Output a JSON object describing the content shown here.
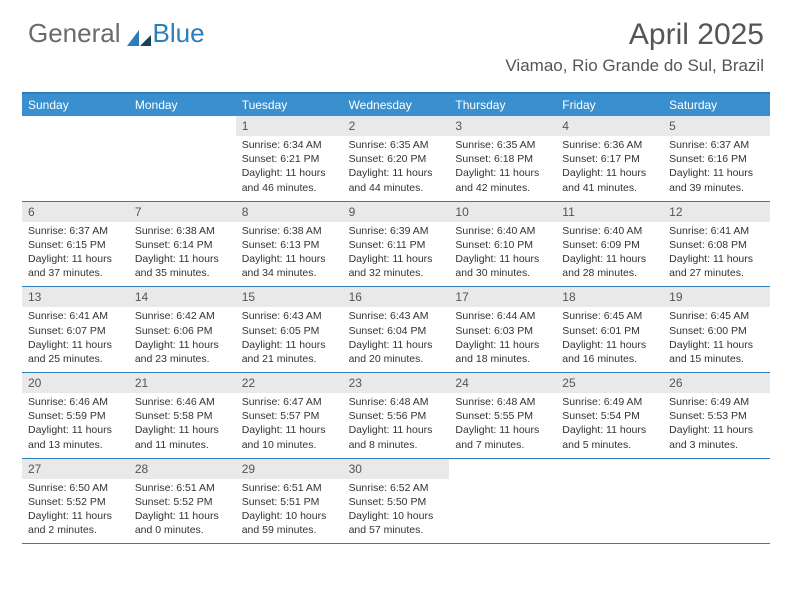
{
  "brand": {
    "part1": "General",
    "part2": "Blue"
  },
  "title": "April 2025",
  "location": "Viamao, Rio Grande do Sul, Brazil",
  "colors": {
    "header_bar": "#3a8fcf",
    "rule": "#2a7fba",
    "daynum_bg": "#e9e9e9",
    "text": "#333333",
    "title_text": "#555555"
  },
  "dow": [
    "Sunday",
    "Monday",
    "Tuesday",
    "Wednesday",
    "Thursday",
    "Friday",
    "Saturday"
  ],
  "weeks": [
    [
      null,
      null,
      {
        "n": "1",
        "sr": "6:34 AM",
        "ss": "6:21 PM",
        "dl": "11 hours and 46 minutes."
      },
      {
        "n": "2",
        "sr": "6:35 AM",
        "ss": "6:20 PM",
        "dl": "11 hours and 44 minutes."
      },
      {
        "n": "3",
        "sr": "6:35 AM",
        "ss": "6:18 PM",
        "dl": "11 hours and 42 minutes."
      },
      {
        "n": "4",
        "sr": "6:36 AM",
        "ss": "6:17 PM",
        "dl": "11 hours and 41 minutes."
      },
      {
        "n": "5",
        "sr": "6:37 AM",
        "ss": "6:16 PM",
        "dl": "11 hours and 39 minutes."
      }
    ],
    [
      {
        "n": "6",
        "sr": "6:37 AM",
        "ss": "6:15 PM",
        "dl": "11 hours and 37 minutes."
      },
      {
        "n": "7",
        "sr": "6:38 AM",
        "ss": "6:14 PM",
        "dl": "11 hours and 35 minutes."
      },
      {
        "n": "8",
        "sr": "6:38 AM",
        "ss": "6:13 PM",
        "dl": "11 hours and 34 minutes."
      },
      {
        "n": "9",
        "sr": "6:39 AM",
        "ss": "6:11 PM",
        "dl": "11 hours and 32 minutes."
      },
      {
        "n": "10",
        "sr": "6:40 AM",
        "ss": "6:10 PM",
        "dl": "11 hours and 30 minutes."
      },
      {
        "n": "11",
        "sr": "6:40 AM",
        "ss": "6:09 PM",
        "dl": "11 hours and 28 minutes."
      },
      {
        "n": "12",
        "sr": "6:41 AM",
        "ss": "6:08 PM",
        "dl": "11 hours and 27 minutes."
      }
    ],
    [
      {
        "n": "13",
        "sr": "6:41 AM",
        "ss": "6:07 PM",
        "dl": "11 hours and 25 minutes."
      },
      {
        "n": "14",
        "sr": "6:42 AM",
        "ss": "6:06 PM",
        "dl": "11 hours and 23 minutes."
      },
      {
        "n": "15",
        "sr": "6:43 AM",
        "ss": "6:05 PM",
        "dl": "11 hours and 21 minutes."
      },
      {
        "n": "16",
        "sr": "6:43 AM",
        "ss": "6:04 PM",
        "dl": "11 hours and 20 minutes."
      },
      {
        "n": "17",
        "sr": "6:44 AM",
        "ss": "6:03 PM",
        "dl": "11 hours and 18 minutes."
      },
      {
        "n": "18",
        "sr": "6:45 AM",
        "ss": "6:01 PM",
        "dl": "11 hours and 16 minutes."
      },
      {
        "n": "19",
        "sr": "6:45 AM",
        "ss": "6:00 PM",
        "dl": "11 hours and 15 minutes."
      }
    ],
    [
      {
        "n": "20",
        "sr": "6:46 AM",
        "ss": "5:59 PM",
        "dl": "11 hours and 13 minutes."
      },
      {
        "n": "21",
        "sr": "6:46 AM",
        "ss": "5:58 PM",
        "dl": "11 hours and 11 minutes."
      },
      {
        "n": "22",
        "sr": "6:47 AM",
        "ss": "5:57 PM",
        "dl": "11 hours and 10 minutes."
      },
      {
        "n": "23",
        "sr": "6:48 AM",
        "ss": "5:56 PM",
        "dl": "11 hours and 8 minutes."
      },
      {
        "n": "24",
        "sr": "6:48 AM",
        "ss": "5:55 PM",
        "dl": "11 hours and 7 minutes."
      },
      {
        "n": "25",
        "sr": "6:49 AM",
        "ss": "5:54 PM",
        "dl": "11 hours and 5 minutes."
      },
      {
        "n": "26",
        "sr": "6:49 AM",
        "ss": "5:53 PM",
        "dl": "11 hours and 3 minutes."
      }
    ],
    [
      {
        "n": "27",
        "sr": "6:50 AM",
        "ss": "5:52 PM",
        "dl": "11 hours and 2 minutes."
      },
      {
        "n": "28",
        "sr": "6:51 AM",
        "ss": "5:52 PM",
        "dl": "11 hours and 0 minutes."
      },
      {
        "n": "29",
        "sr": "6:51 AM",
        "ss": "5:51 PM",
        "dl": "10 hours and 59 minutes."
      },
      {
        "n": "30",
        "sr": "6:52 AM",
        "ss": "5:50 PM",
        "dl": "10 hours and 57 minutes."
      },
      null,
      null,
      null
    ]
  ],
  "labels": {
    "sunrise": "Sunrise:",
    "sunset": "Sunset:",
    "daylight": "Daylight:"
  }
}
